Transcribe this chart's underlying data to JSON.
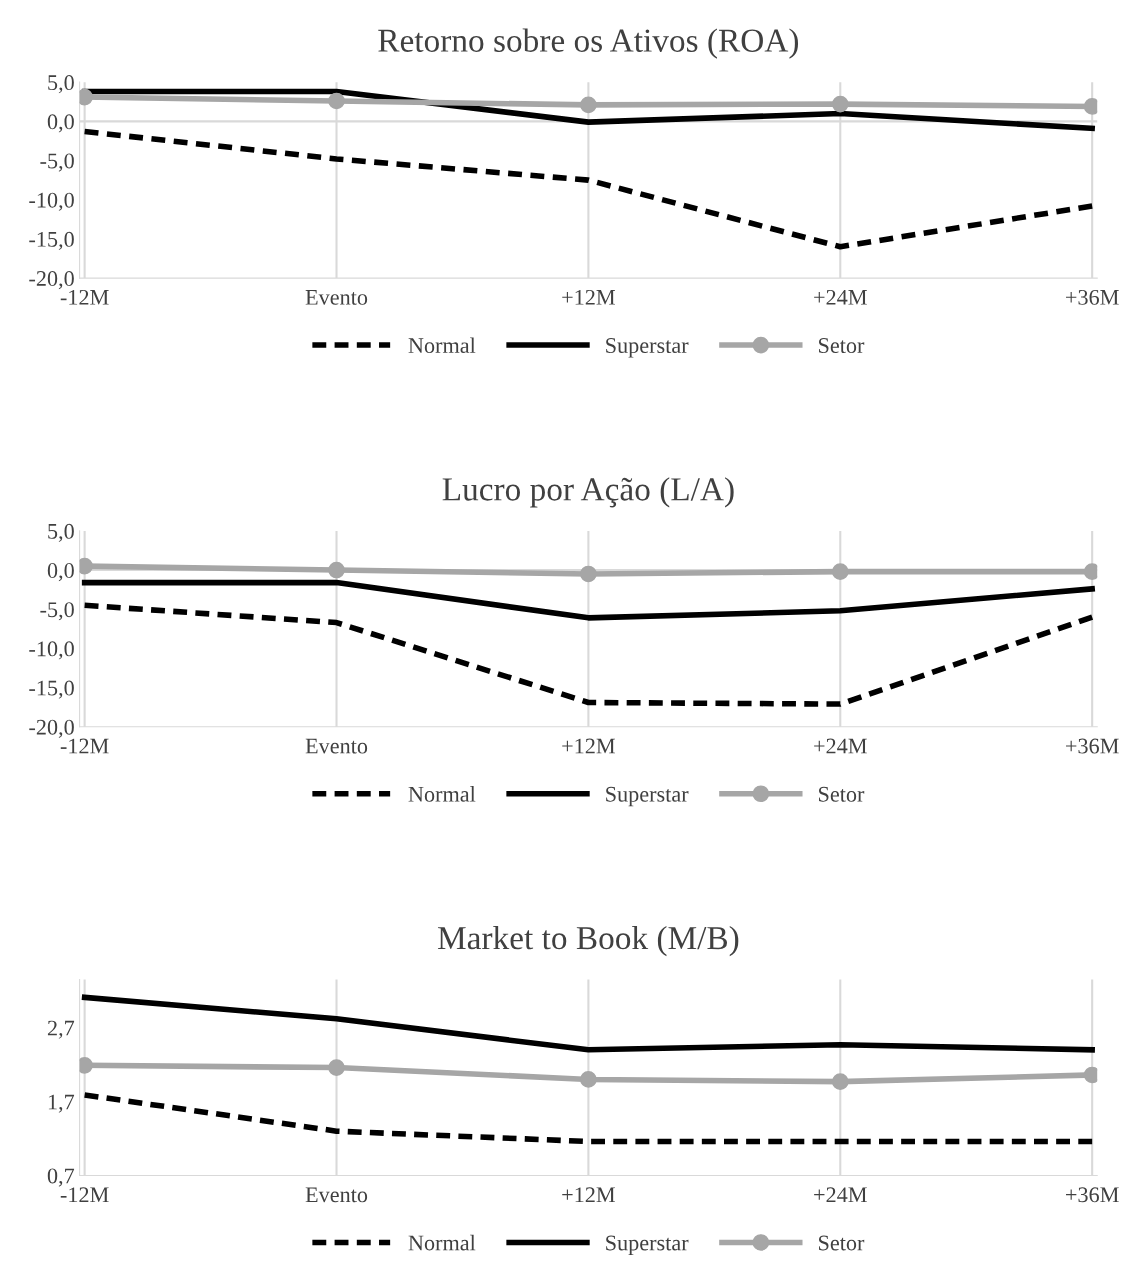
{
  "chart_data": [
    {
      "type": "line",
      "title": "Retorno sobre os Ativos (ROA)",
      "categories": [
        "-12M",
        "Evento",
        "+12M",
        "+24M",
        "+36M"
      ],
      "ylim": [
        -20,
        5
      ],
      "yticks": [
        {
          "value": -20,
          "label": "-20,0"
        },
        {
          "value": -15,
          "label": "-15,0"
        },
        {
          "value": -10,
          "label": "-10,0"
        },
        {
          "value": -5,
          "label": "-5,0"
        },
        {
          "value": 0,
          "label": "0,0"
        },
        {
          "value": 5,
          "label": "5,0"
        }
      ],
      "grid": "x",
      "legend": "bottom",
      "ref_lines": [
        {
          "axis": "y",
          "value": 0,
          "color": "#d9d9d9"
        }
      ],
      "series": [
        {
          "name": "Normal",
          "color": "#000000",
          "line_style": "dashed",
          "marker": "none",
          "values": [
            -1.3,
            -4.8,
            -7.5,
            -16.0,
            -10.8
          ]
        },
        {
          "name": "Superstar",
          "color": "#000000",
          "line_style": "solid",
          "marker": "none",
          "values": [
            3.8,
            3.8,
            -0.1,
            1.0,
            -0.9
          ]
        },
        {
          "name": "Setor",
          "color": "#a6a6a6",
          "line_style": "solid",
          "marker": "circle",
          "values": [
            3.1,
            2.6,
            2.1,
            2.2,
            1.9
          ]
        }
      ]
    },
    {
      "type": "line",
      "title": "Lucro por Ação (L/A)",
      "categories": [
        "-12M",
        "Evento",
        "+12M",
        "+24M",
        "+36M"
      ],
      "ylim": [
        -20,
        5
      ],
      "yticks": [
        {
          "value": -20,
          "label": "-20,0"
        },
        {
          "value": -15,
          "label": "-15,0"
        },
        {
          "value": -10,
          "label": "-10,0"
        },
        {
          "value": -5,
          "label": "-5,0"
        },
        {
          "value": 0,
          "label": "0,0"
        },
        {
          "value": 5,
          "label": "5,0"
        }
      ],
      "grid": "x",
      "legend": "bottom",
      "ref_lines": [
        {
          "axis": "y",
          "value": 0,
          "color": "#d9d9d9"
        }
      ],
      "series": [
        {
          "name": "Normal",
          "color": "#000000",
          "line_style": "dashed",
          "marker": "none",
          "values": [
            -4.5,
            -6.7,
            -16.9,
            -17.1,
            -6.0
          ]
        },
        {
          "name": "Superstar",
          "color": "#000000",
          "line_style": "solid",
          "marker": "none",
          "values": [
            -1.6,
            -1.6,
            -6.1,
            -5.2,
            -2.4
          ]
        },
        {
          "name": "Setor",
          "color": "#a6a6a6",
          "line_style": "solid",
          "marker": "circle",
          "values": [
            0.5,
            0.0,
            -0.5,
            -0.2,
            -0.2
          ]
        }
      ]
    },
    {
      "type": "line",
      "title": "Market to Book (M/B)",
      "categories": [
        "-12M",
        "Evento",
        "+12M",
        "+24M",
        "+36M"
      ],
      "ylim": [
        0.7,
        3.35
      ],
      "yticks": [
        {
          "value": 0.7,
          "label": "0,7"
        },
        {
          "value": 1.7,
          "label": "1,7"
        },
        {
          "value": 2.7,
          "label": "2,7"
        }
      ],
      "grid": "x",
      "legend": "bottom",
      "series": [
        {
          "name": "Normal",
          "color": "#000000",
          "line_style": "dashed",
          "marker": "none",
          "values": [
            1.79,
            1.3,
            1.16,
            1.16,
            1.16
          ]
        },
        {
          "name": "Superstar",
          "color": "#000000",
          "line_style": "solid",
          "marker": "none",
          "values": [
            3.11,
            2.82,
            2.4,
            2.47,
            2.4
          ]
        },
        {
          "name": "Setor",
          "color": "#a6a6a6",
          "line_style": "solid",
          "marker": "circle",
          "values": [
            2.19,
            2.16,
            2.0,
            1.97,
            2.06
          ]
        }
      ]
    }
  ]
}
